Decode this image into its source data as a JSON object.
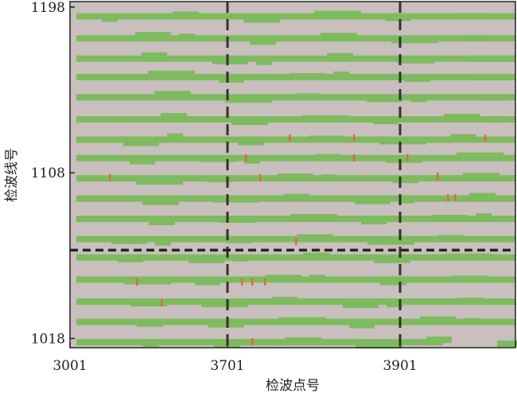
{
  "chart_data": {
    "type": "coverage",
    "x_label": "检波点号",
    "y_label": "检波线号",
    "xtick_labels": [
      "3001",
      "3701",
      "3901"
    ],
    "ylim": [
      1013,
      1201
    ],
    "yticks": [
      1018,
      1108,
      1198
    ],
    "lines": [
      1193,
      1181,
      1170,
      1160,
      1149,
      1137,
      1126,
      1116,
      1105,
      1094,
      1083,
      1072,
      1062,
      1050,
      1038,
      1027,
      1016
    ],
    "reference_line": 1066,
    "band_color": "#7dbb5e",
    "background": "#c9bfbe",
    "marker_color": "#e8663a"
  }
}
